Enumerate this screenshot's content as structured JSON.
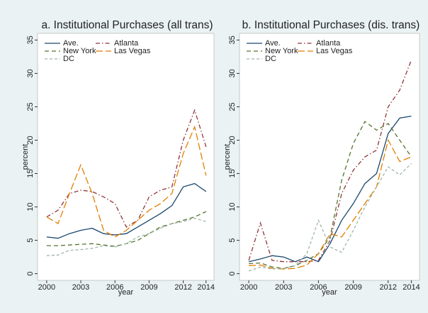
{
  "chart_data": [
    {
      "type": "line",
      "title": "a. Institutional Purchases (all trans)",
      "x_label": "year",
      "y_label": "percent",
      "x": [
        2000,
        2001,
        2002,
        2003,
        2004,
        2005,
        2006,
        2007,
        2008,
        2009,
        2010,
        2011,
        2012,
        2013,
        2014
      ],
      "xlim": [
        1999.2,
        2014.7
      ],
      "xticks": [
        2000,
        2003,
        2006,
        2009,
        2012,
        2014
      ],
      "ylim": [
        -1,
        36
      ],
      "yticks": [
        0,
        5,
        10,
        15,
        20,
        25,
        30,
        35
      ],
      "grid": false,
      "legend": "top-left",
      "series": [
        {
          "name": "Ave.",
          "color": "#1a476f",
          "line_style": "solid",
          "values": [
            5.5,
            5.3,
            6,
            6.5,
            6.8,
            6,
            5.8,
            6,
            7,
            8,
            9,
            10.2,
            13,
            13.5,
            12.3
          ]
        },
        {
          "name": "Atlanta",
          "color": "#90353b",
          "line_style": "dash-dot",
          "values": [
            8.5,
            9.5,
            12,
            12.5,
            12.3,
            11.5,
            10.5,
            7,
            8,
            11.5,
            12.5,
            13,
            20,
            24.5,
            19
          ]
        },
        {
          "name": "New York",
          "color": "#55752f",
          "line_style": "dash",
          "values": [
            4.2,
            4.2,
            4.3,
            4.4,
            4.5,
            4.3,
            4.1,
            4.5,
            5,
            6,
            7,
            7.5,
            8,
            8.5,
            9.3
          ]
        },
        {
          "name": "Las Vegas",
          "color": "#e37e00",
          "line_style": "long-dash",
          "values": [
            8.5,
            7.5,
            12,
            16.3,
            12,
            6.5,
            5.5,
            6.5,
            8,
            9.5,
            10.5,
            12,
            18,
            22,
            14.7
          ]
        },
        {
          "name": "DC",
          "color": "#9fb5a5",
          "line_style": "short-dash",
          "values": [
            2.7,
            2.8,
            3.5,
            3.6,
            3.8,
            4.2,
            4,
            4.5,
            5.5,
            6,
            6.8,
            7.5,
            7.8,
            8.3,
            7.8
          ]
        }
      ]
    },
    {
      "type": "line",
      "title": "b. Institutional Purchases (dis. trans)",
      "x_label": "year",
      "y_label": "percent",
      "x": [
        2000,
        2001,
        2002,
        2003,
        2004,
        2005,
        2006,
        2007,
        2008,
        2009,
        2010,
        2011,
        2012,
        2013,
        2014
      ],
      "xlim": [
        1999.2,
        2014.7
      ],
      "xticks": [
        2000,
        2003,
        2006,
        2009,
        2012,
        2014
      ],
      "ylim": [
        -1,
        36
      ],
      "yticks": [
        0,
        5,
        10,
        15,
        20,
        25,
        30,
        35
      ],
      "grid": false,
      "legend": "top-left",
      "series": [
        {
          "name": "Ave.",
          "color": "#1a476f",
          "line_style": "solid",
          "values": [
            1.8,
            2.2,
            2.7,
            2.5,
            1.8,
            2.5,
            1.8,
            4.5,
            8,
            10.5,
            13.5,
            15,
            21,
            23.3,
            23.6
          ]
        },
        {
          "name": "Atlanta",
          "color": "#90353b",
          "line_style": "dash-dot",
          "values": [
            2,
            7.6,
            2,
            1.8,
            1.8,
            1.8,
            2,
            5,
            12,
            15.5,
            17.5,
            18.5,
            25,
            27.5,
            32
          ]
        },
        {
          "name": "New York",
          "color": "#55752f",
          "line_style": "dash",
          "values": [
            1.5,
            1.6,
            1,
            0.8,
            1.2,
            2,
            3,
            5.5,
            14,
            19.5,
            22.8,
            21.5,
            22.5,
            20,
            17.5
          ]
        },
        {
          "name": "Las Vegas",
          "color": "#e37e00",
          "line_style": "long-dash",
          "values": [
            1.2,
            1.3,
            0.8,
            0.7,
            0.8,
            1.3,
            3,
            6,
            5.5,
            8,
            10.5,
            13,
            20,
            16.8,
            17.5
          ]
        },
        {
          "name": "DC",
          "color": "#9fb5a5",
          "line_style": "short-dash",
          "values": [
            0.4,
            1,
            0.7,
            0.8,
            1.2,
            3,
            8,
            4,
            3.2,
            6.5,
            10,
            13,
            16,
            14.8,
            16.5
          ]
        }
      ]
    }
  ]
}
